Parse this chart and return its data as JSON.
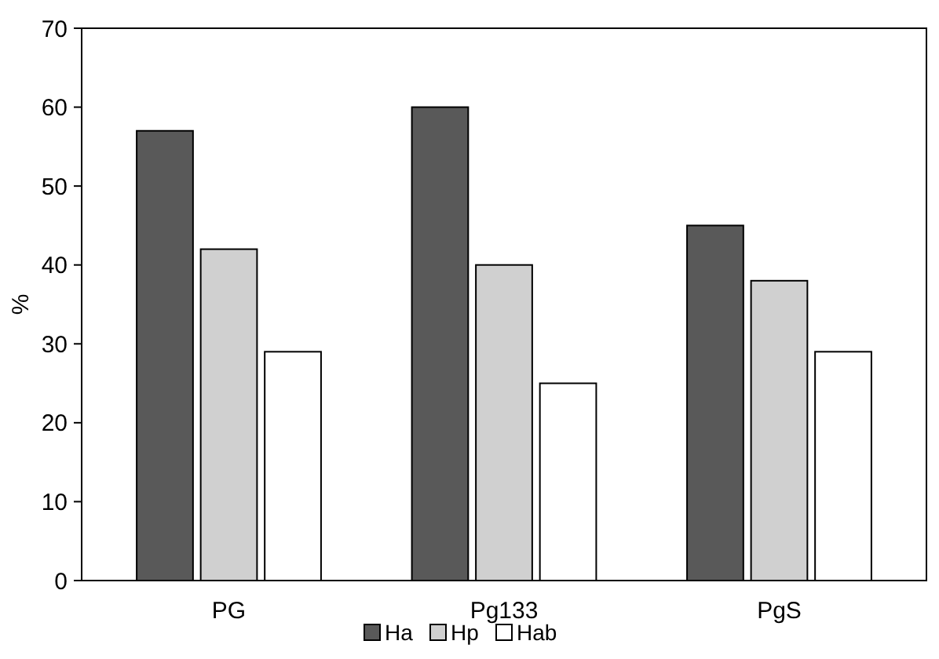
{
  "chart_data": {
    "type": "bar",
    "ylabel": "%",
    "categories": [
      "PG",
      "Pg133",
      "PgS"
    ],
    "series": [
      {
        "name": "Ha",
        "color": "#595959",
        "values": [
          57,
          60,
          45
        ]
      },
      {
        "name": "Hp",
        "color": "#d0d0d0",
        "values": [
          42,
          40,
          38
        ]
      },
      {
        "name": "Hab",
        "color": "#ffffff",
        "values": [
          29,
          25,
          29
        ]
      }
    ],
    "ylim": [
      0,
      70
    ],
    "yticks": [
      0,
      10,
      20,
      30,
      40,
      50,
      60,
      70
    ],
    "grid": false,
    "legend": "bottom"
  }
}
